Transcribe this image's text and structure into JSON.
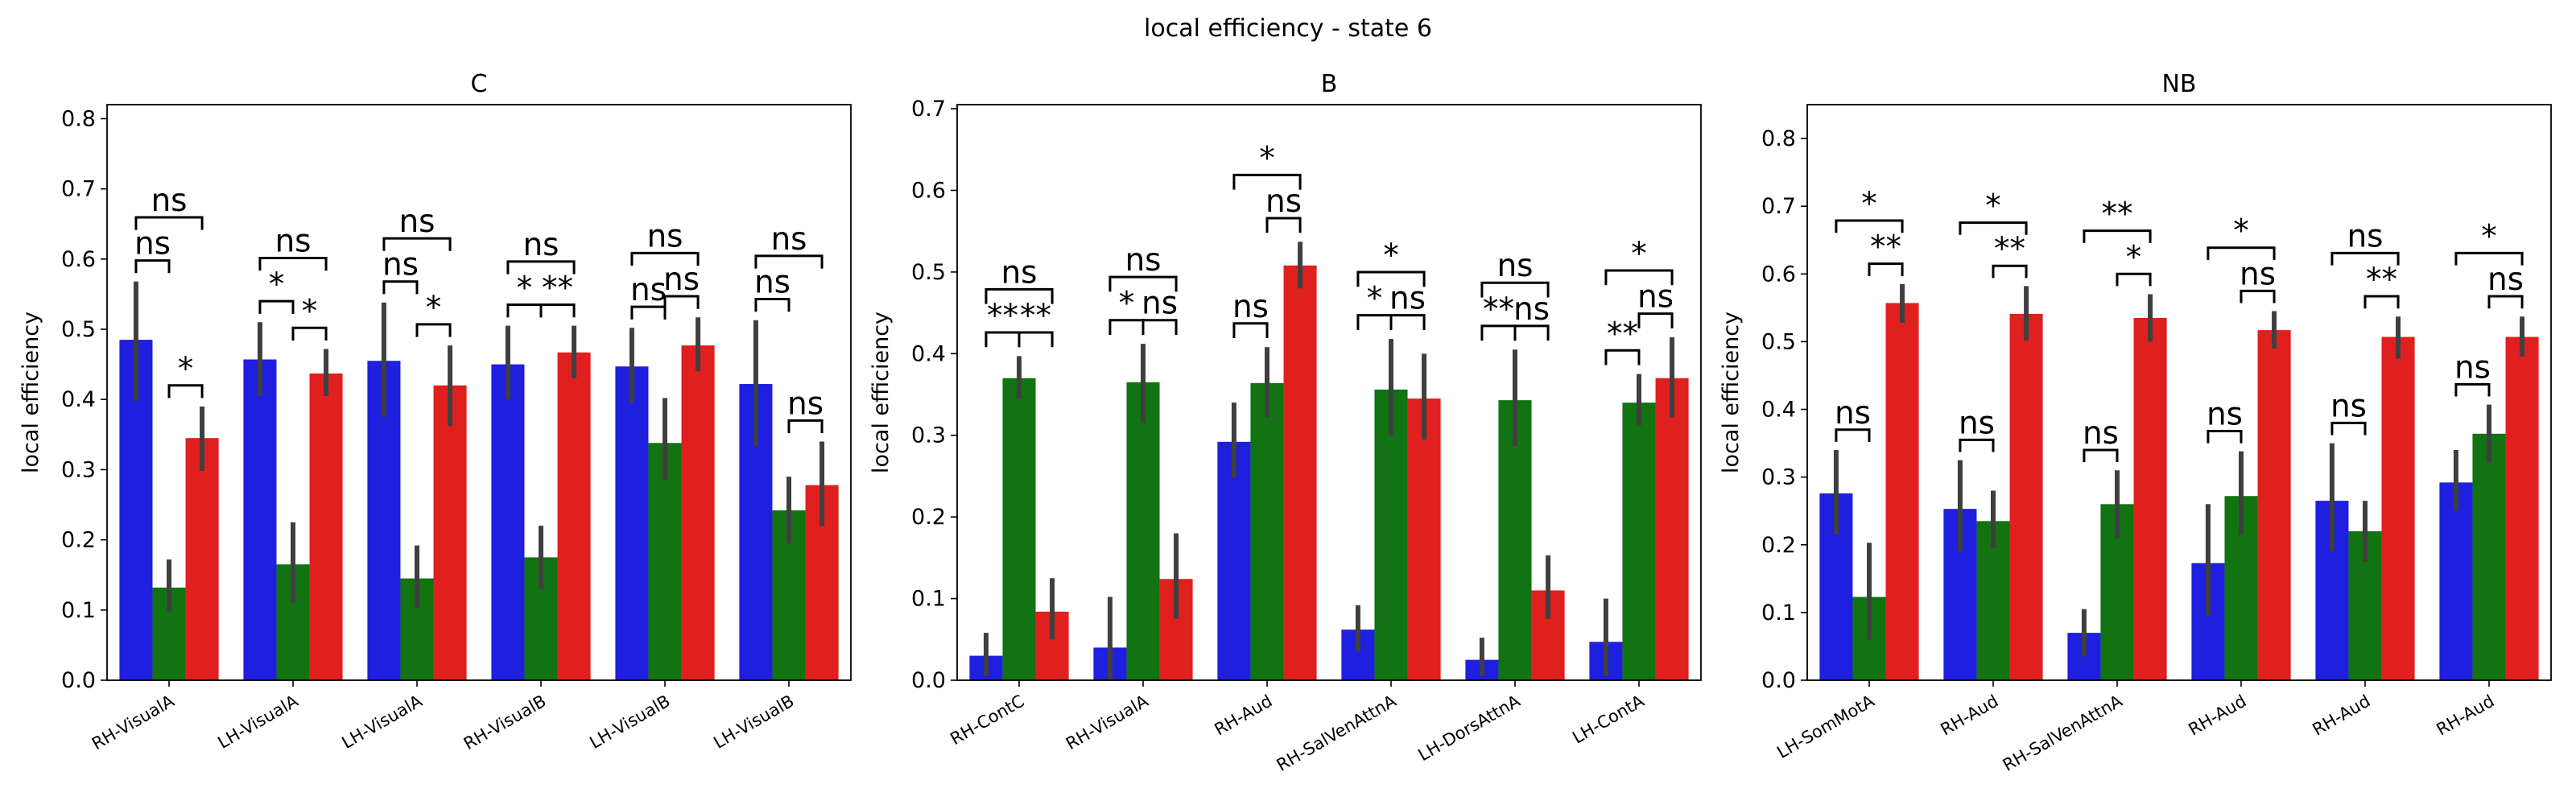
{
  "suptitle": "local efficiency - state 6",
  "colors": [
    "#1f1fe0",
    "#117311",
    "#e01f1f"
  ],
  "errorbar_color": "#3f3f3f",
  "chart_data": [
    {
      "type": "bar",
      "title": "C",
      "ylabel": "local efficiency",
      "ylim": [
        0,
        0.82
      ],
      "yticks": [
        0.0,
        0.1,
        0.2,
        0.3,
        0.4,
        0.5,
        0.6,
        0.7,
        0.8
      ],
      "ytick_labels": [
        "0.0",
        "0.1",
        "0.2",
        "0.3",
        "0.4",
        "0.5",
        "0.6",
        "0.7",
        "0.8"
      ],
      "categories": [
        "RH-VisualA",
        "LH-VisualA",
        "LH-VisualA",
        "RH-VisualB",
        "LH-VisualB",
        "LH-VisualB"
      ],
      "series": [
        {
          "values": [
            0.485,
            0.457,
            0.455,
            0.45,
            0.447,
            0.422
          ],
          "err_low": [
            0.398,
            0.405,
            0.375,
            0.4,
            0.395,
            0.333
          ],
          "err_high": [
            0.568,
            0.51,
            0.538,
            0.505,
            0.502,
            0.513
          ]
        },
        {
          "values": [
            0.132,
            0.165,
            0.145,
            0.175,
            0.338,
            0.242
          ],
          "err_low": [
            0.098,
            0.11,
            0.102,
            0.13,
            0.285,
            0.195
          ],
          "err_high": [
            0.172,
            0.225,
            0.192,
            0.22,
            0.402,
            0.29
          ]
        },
        {
          "values": [
            0.345,
            0.437,
            0.42,
            0.467,
            0.477,
            0.278
          ],
          "err_low": [
            0.298,
            0.405,
            0.362,
            0.43,
            0.44,
            0.22
          ],
          "err_high": [
            0.39,
            0.472,
            0.477,
            0.505,
            0.517,
            0.34
          ]
        }
      ],
      "annotations": [
        {
          "category": 0,
          "inner_left": "ns",
          "inner_right": "*",
          "outer": "ns"
        },
        {
          "category": 1,
          "inner_left": "*",
          "inner_right": "*",
          "outer": "ns"
        },
        {
          "category": 2,
          "inner_left": "ns",
          "inner_right": "*",
          "outer": "ns"
        },
        {
          "category": 3,
          "inner_left": "*",
          "inner_right": "**",
          "outer": "ns"
        },
        {
          "category": 4,
          "inner_left": "ns",
          "inner_right": "ns",
          "outer": "ns"
        },
        {
          "category": 5,
          "inner_left": "ns",
          "inner_right": "ns",
          "outer": "ns"
        }
      ]
    },
    {
      "type": "bar",
      "title": "B",
      "ylabel": "local efficiency",
      "ylim": [
        0,
        0.705
      ],
      "yticks": [
        0.0,
        0.1,
        0.2,
        0.3,
        0.4,
        0.5,
        0.6,
        0.7
      ],
      "ytick_labels": [
        "0.0",
        "0.1",
        "0.2",
        "0.3",
        "0.4",
        "0.5",
        "0.6",
        "0.7"
      ],
      "categories": [
        "RH-ContC",
        "RH-VisualA",
        "RH-Aud",
        "RH-SalVenAttnA",
        "LH-DorsAttnA",
        "LH-ContA"
      ],
      "series": [
        {
          "values": [
            0.03,
            0.04,
            0.292,
            0.062,
            0.025,
            0.047
          ],
          "err_low": [
            0.005,
            0.0,
            0.248,
            0.035,
            0.005,
            0.005
          ],
          "err_high": [
            0.058,
            0.102,
            0.34,
            0.092,
            0.052,
            0.1
          ]
        },
        {
          "values": [
            0.37,
            0.365,
            0.364,
            0.356,
            0.343,
            0.34
          ],
          "err_low": [
            0.345,
            0.315,
            0.322,
            0.3,
            0.287,
            0.312
          ],
          "err_high": [
            0.397,
            0.412,
            0.408,
            0.418,
            0.405,
            0.375
          ]
        },
        {
          "values": [
            0.084,
            0.124,
            0.508,
            0.345,
            0.11,
            0.37
          ],
          "err_low": [
            0.05,
            0.075,
            0.48,
            0.295,
            0.075,
            0.322
          ],
          "err_high": [
            0.125,
            0.18,
            0.537,
            0.4,
            0.153,
            0.42
          ]
        }
      ],
      "annotations": [
        {
          "category": 0,
          "inner_left": "**",
          "inner_right": "**",
          "outer": "ns"
        },
        {
          "category": 1,
          "inner_left": "*",
          "inner_right": "ns",
          "outer": "ns"
        },
        {
          "category": 2,
          "inner_left": "ns",
          "inner_right": "ns",
          "outer": "*"
        },
        {
          "category": 3,
          "inner_left": "*",
          "inner_right": "ns",
          "outer": "*"
        },
        {
          "category": 4,
          "inner_left": "**",
          "inner_right": "ns",
          "outer": "ns"
        },
        {
          "category": 5,
          "inner_left": "**",
          "inner_right": "ns",
          "outer": "*"
        }
      ]
    },
    {
      "type": "bar",
      "title": "NB",
      "ylabel": "local efficiency",
      "ylim": [
        0,
        0.85
      ],
      "yticks": [
        0.0,
        0.1,
        0.2,
        0.3,
        0.4,
        0.5,
        0.6,
        0.7,
        0.8
      ],
      "ytick_labels": [
        "0.0",
        "0.1",
        "0.2",
        "0.3",
        "0.4",
        "0.5",
        "0.6",
        "0.7",
        "0.8"
      ],
      "categories": [
        "LH-SomMotA",
        "RH-Aud",
        "RH-SalVenAttnA",
        "RH-Aud",
        "RH-Aud",
        "RH-Aud"
      ],
      "series": [
        {
          "values": [
            0.276,
            0.253,
            0.07,
            0.173,
            0.265,
            0.292
          ],
          "err_low": [
            0.215,
            0.19,
            0.035,
            0.095,
            0.19,
            0.25
          ],
          "err_high": [
            0.34,
            0.325,
            0.105,
            0.26,
            0.35,
            0.34
          ]
        },
        {
          "values": [
            0.123,
            0.235,
            0.26,
            0.272,
            0.22,
            0.364
          ],
          "err_low": [
            0.06,
            0.195,
            0.21,
            0.215,
            0.175,
            0.322
          ],
          "err_high": [
            0.203,
            0.28,
            0.31,
            0.338,
            0.265,
            0.407
          ]
        },
        {
          "values": [
            0.557,
            0.541,
            0.535,
            0.517,
            0.507,
            0.507
          ],
          "err_low": [
            0.528,
            0.502,
            0.5,
            0.49,
            0.475,
            0.478
          ],
          "err_high": [
            0.585,
            0.582,
            0.57,
            0.545,
            0.537,
            0.537
          ]
        }
      ],
      "annotations": [
        {
          "category": 0,
          "inner_left": "ns",
          "inner_right": "**",
          "outer": "*"
        },
        {
          "category": 1,
          "inner_left": "ns",
          "inner_right": "**",
          "outer": "*"
        },
        {
          "category": 2,
          "inner_left": "ns",
          "inner_right": "*",
          "outer": "**"
        },
        {
          "category": 3,
          "inner_left": "ns",
          "inner_right": "ns",
          "outer": "*"
        },
        {
          "category": 4,
          "inner_left": "ns",
          "inner_right": "**",
          "outer": "ns"
        },
        {
          "category": 5,
          "inner_left": "ns",
          "inner_right": "ns",
          "outer": "*"
        }
      ]
    }
  ]
}
